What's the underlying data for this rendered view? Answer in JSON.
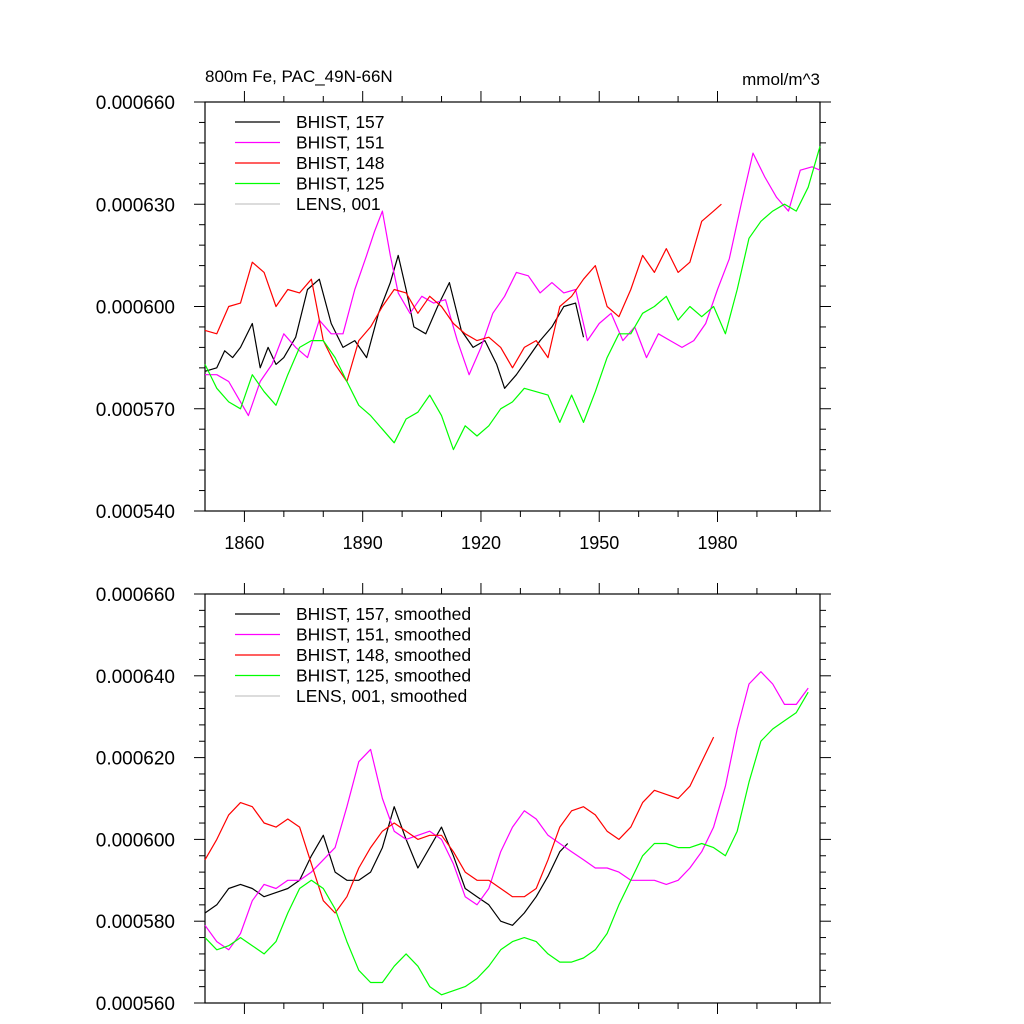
{
  "figure": {
    "title_left": "800m Fe, PAC_49N-66N",
    "title_right": "mmol/m^3"
  },
  "chart_data": [
    {
      "type": "line",
      "title": "800m Fe, PAC_49N-66N",
      "units": "mmol/m^3",
      "xlim": [
        1850,
        2006
      ],
      "ylim": [
        0.00054,
        0.00066
      ],
      "xticks": [
        1860,
        1890,
        1920,
        1950,
        1980
      ],
      "yticks": [
        0.00054,
        0.00057,
        0.0006,
        0.00063,
        0.00066
      ],
      "ytick_labels": [
        "0.000540",
        "0.000570",
        "0.000600",
        "0.000630",
        "0.000660"
      ],
      "xtick_labels": [
        "1860",
        "1890",
        "1920",
        "1950",
        "1980"
      ],
      "legend_placement": "top-left",
      "series": [
        {
          "name": "BHIST, 157",
          "color": "#000000",
          "x": [
            1850,
            1853,
            1855,
            1857,
            1859,
            1862,
            1864,
            1866,
            1868,
            1870,
            1873,
            1876,
            1879,
            1882,
            1885,
            1888,
            1891,
            1894,
            1897,
            1899,
            1901,
            1903,
            1906,
            1909,
            1912,
            1915,
            1918,
            1921,
            1924,
            1926,
            1929,
            1932,
            1935,
            1938,
            1941,
            1944,
            1946
          ],
          "values": [
            0.000581,
            0.000582,
            0.000587,
            0.000585,
            0.000588,
            0.000595,
            0.000582,
            0.000588,
            0.000583,
            0.000585,
            0.000591,
            0.000605,
            0.000608,
            0.000595,
            0.000588,
            0.00059,
            0.000585,
            0.000598,
            0.000607,
            0.000615,
            0.000605,
            0.000594,
            0.000592,
            0.0006,
            0.000607,
            0.000593,
            0.000588,
            0.00059,
            0.000583,
            0.000576,
            0.00058,
            0.000585,
            0.00059,
            0.000594,
            0.0006,
            0.000601,
            0.000591
          ]
        },
        {
          "name": "BHIST, 151",
          "color": "#ff00ff",
          "x": [
            1850,
            1853,
            1856,
            1859,
            1861,
            1864,
            1867,
            1870,
            1873,
            1876,
            1879,
            1882,
            1885,
            1888,
            1891,
            1893,
            1895,
            1897,
            1899,
            1902,
            1905,
            1908,
            1911,
            1914,
            1917,
            1920,
            1923,
            1926,
            1929,
            1932,
            1935,
            1938,
            1941,
            1944,
            1947,
            1950,
            1953,
            1956,
            1959,
            1962,
            1965,
            1968,
            1971,
            1974,
            1977,
            1980,
            1983,
            1986,
            1989,
            1992,
            1995,
            1998,
            2001,
            2004,
            2006
          ],
          "values": [
            0.00058,
            0.00058,
            0.000578,
            0.000572,
            0.000568,
            0.000578,
            0.000583,
            0.000592,
            0.000588,
            0.000585,
            0.000596,
            0.000592,
            0.000592,
            0.000605,
            0.000615,
            0.000622,
            0.000628,
            0.000615,
            0.000604,
            0.000598,
            0.000603,
            0.000601,
            0.000602,
            0.00059,
            0.00058,
            0.000588,
            0.000598,
            0.000603,
            0.00061,
            0.000609,
            0.000604,
            0.000607,
            0.000604,
            0.000605,
            0.00059,
            0.000595,
            0.000598,
            0.00059,
            0.000594,
            0.000585,
            0.000592,
            0.00059,
            0.000588,
            0.00059,
            0.000595,
            0.000605,
            0.000614,
            0.00063,
            0.000645,
            0.000638,
            0.000632,
            0.000628,
            0.00064,
            0.000641,
            0.00064
          ]
        },
        {
          "name": "BHIST, 148",
          "color": "#ff0000",
          "x": [
            1850,
            1853,
            1856,
            1859,
            1862,
            1865,
            1868,
            1871,
            1874,
            1877,
            1880,
            1883,
            1886,
            1889,
            1892,
            1895,
            1898,
            1901,
            1904,
            1907,
            1910,
            1913,
            1916,
            1919,
            1922,
            1925,
            1928,
            1931,
            1934,
            1937,
            1940,
            1943,
            1946,
            1949,
            1952,
            1955,
            1958,
            1961,
            1964,
            1967,
            1970,
            1973,
            1976,
            1979,
            1981
          ],
          "values": [
            0.000593,
            0.000592,
            0.0006,
            0.000601,
            0.000613,
            0.00061,
            0.0006,
            0.000605,
            0.000604,
            0.000608,
            0.00059,
            0.000583,
            0.000578,
            0.00059,
            0.000594,
            0.0006,
            0.000605,
            0.000604,
            0.000598,
            0.000603,
            0.0006,
            0.000595,
            0.000592,
            0.00059,
            0.000591,
            0.000588,
            0.000582,
            0.000588,
            0.00059,
            0.000585,
            0.0006,
            0.000603,
            0.000608,
            0.000612,
            0.0006,
            0.000597,
            0.000605,
            0.000615,
            0.00061,
            0.000617,
            0.00061,
            0.000613,
            0.000625,
            0.000628,
            0.00063
          ]
        },
        {
          "name": "BHIST, 125",
          "color": "#00ff00",
          "x": [
            1850,
            1853,
            1856,
            1859,
            1862,
            1865,
            1868,
            1871,
            1874,
            1877,
            1880,
            1883,
            1886,
            1889,
            1892,
            1895,
            1898,
            1901,
            1904,
            1907,
            1910,
            1913,
            1916,
            1919,
            1922,
            1925,
            1928,
            1931,
            1934,
            1937,
            1940,
            1943,
            1946,
            1949,
            1952,
            1955,
            1958,
            1961,
            1964,
            1967,
            1970,
            1973,
            1976,
            1979,
            1982,
            1985,
            1988,
            1991,
            1994,
            1997,
            2000,
            2003,
            2006
          ],
          "values": [
            0.000583,
            0.000576,
            0.000572,
            0.00057,
            0.00058,
            0.000575,
            0.000571,
            0.00058,
            0.000588,
            0.00059,
            0.00059,
            0.000585,
            0.000578,
            0.000571,
            0.000568,
            0.000564,
            0.00056,
            0.000567,
            0.000569,
            0.000574,
            0.000568,
            0.000558,
            0.000565,
            0.000562,
            0.000565,
            0.00057,
            0.000572,
            0.000576,
            0.000575,
            0.000574,
            0.000566,
            0.000574,
            0.000566,
            0.000575,
            0.000585,
            0.000592,
            0.000592,
            0.000598,
            0.0006,
            0.000603,
            0.000596,
            0.0006,
            0.000597,
            0.0006,
            0.000592,
            0.000605,
            0.00062,
            0.000625,
            0.000628,
            0.00063,
            0.000628,
            0.000635,
            0.000647
          ]
        },
        {
          "name": "LENS, 001",
          "color": "#c8c8c8",
          "x": [],
          "values": []
        }
      ]
    },
    {
      "type": "line",
      "title": "",
      "xlim": [
        1850,
        2006
      ],
      "ylim": [
        0.00056,
        0.00066
      ],
      "xticks": [
        1860,
        1890,
        1920,
        1950,
        1980
      ],
      "yticks": [
        0.00056,
        0.00058,
        0.0006,
        0.00062,
        0.00064,
        0.00066
      ],
      "ytick_labels": [
        "0.000560",
        "0.000580",
        "0.000600",
        "0.000620",
        "0.000640",
        "0.000660"
      ],
      "xtick_labels": [],
      "legend_placement": "top-left",
      "series": [
        {
          "name": "BHIST, 157, smoothed",
          "color": "#000000",
          "x": [
            1850,
            1853,
            1856,
            1859,
            1862,
            1865,
            1868,
            1871,
            1874,
            1877,
            1880,
            1883,
            1886,
            1889,
            1892,
            1895,
            1898,
            1901,
            1904,
            1907,
            1910,
            1913,
            1916,
            1919,
            1922,
            1925,
            1928,
            1931,
            1934,
            1937,
            1940,
            1942
          ],
          "values": [
            0.000582,
            0.000584,
            0.000588,
            0.000589,
            0.000588,
            0.000586,
            0.000587,
            0.000588,
            0.00059,
            0.000596,
            0.000601,
            0.000592,
            0.00059,
            0.00059,
            0.000592,
            0.000598,
            0.000608,
            0.0006,
            0.000593,
            0.000598,
            0.000603,
            0.000596,
            0.000588,
            0.000586,
            0.000584,
            0.00058,
            0.000579,
            0.000582,
            0.000586,
            0.000591,
            0.000597,
            0.000599
          ]
        },
        {
          "name": "BHIST, 151, smoothed",
          "color": "#ff00ff",
          "x": [
            1850,
            1853,
            1856,
            1859,
            1862,
            1865,
            1868,
            1871,
            1874,
            1877,
            1880,
            1883,
            1886,
            1889,
            1892,
            1895,
            1898,
            1901,
            1904,
            1907,
            1910,
            1913,
            1916,
            1919,
            1922,
            1925,
            1928,
            1931,
            1934,
            1937,
            1940,
            1943,
            1946,
            1949,
            1952,
            1955,
            1958,
            1961,
            1964,
            1967,
            1970,
            1973,
            1976,
            1979,
            1982,
            1985,
            1988,
            1991,
            1994,
            1997,
            2000,
            2003
          ],
          "values": [
            0.000579,
            0.000575,
            0.000573,
            0.000577,
            0.000585,
            0.000589,
            0.000588,
            0.00059,
            0.00059,
            0.000592,
            0.000595,
            0.000598,
            0.000608,
            0.000619,
            0.000622,
            0.00061,
            0.000602,
            0.0006,
            0.000601,
            0.000602,
            0.0006,
            0.000594,
            0.000586,
            0.000584,
            0.000588,
            0.000597,
            0.000603,
            0.000607,
            0.000605,
            0.000601,
            0.000599,
            0.000597,
            0.000595,
            0.000593,
            0.000593,
            0.000592,
            0.00059,
            0.00059,
            0.00059,
            0.000589,
            0.00059,
            0.000593,
            0.000597,
            0.000603,
            0.000613,
            0.000627,
            0.000638,
            0.000641,
            0.000638,
            0.000633,
            0.000633,
            0.000637
          ]
        },
        {
          "name": "BHIST, 148, smoothed",
          "color": "#ff0000",
          "x": [
            1850,
            1853,
            1856,
            1859,
            1862,
            1865,
            1868,
            1871,
            1874,
            1877,
            1880,
            1883,
            1886,
            1889,
            1892,
            1895,
            1898,
            1901,
            1904,
            1907,
            1910,
            1913,
            1916,
            1919,
            1922,
            1925,
            1928,
            1931,
            1934,
            1937,
            1940,
            1943,
            1946,
            1949,
            1952,
            1955,
            1958,
            1961,
            1964,
            1967,
            1970,
            1973,
            1976,
            1979
          ],
          "values": [
            0.000595,
            0.0006,
            0.000606,
            0.000609,
            0.000608,
            0.000604,
            0.000603,
            0.000605,
            0.000603,
            0.000594,
            0.000585,
            0.000582,
            0.000586,
            0.000593,
            0.000598,
            0.000602,
            0.000604,
            0.000602,
            0.0006,
            0.000601,
            0.000601,
            0.000597,
            0.000592,
            0.00059,
            0.00059,
            0.000588,
            0.000586,
            0.000586,
            0.000588,
            0.000595,
            0.000603,
            0.000607,
            0.000608,
            0.000606,
            0.000602,
            0.0006,
            0.000603,
            0.000609,
            0.000612,
            0.000611,
            0.00061,
            0.000613,
            0.000619,
            0.000625
          ]
        },
        {
          "name": "BHIST, 125, smoothed",
          "color": "#00ff00",
          "x": [
            1850,
            1853,
            1856,
            1859,
            1862,
            1865,
            1868,
            1871,
            1874,
            1877,
            1880,
            1883,
            1886,
            1889,
            1892,
            1895,
            1898,
            1901,
            1904,
            1907,
            1910,
            1913,
            1916,
            1919,
            1922,
            1925,
            1928,
            1931,
            1934,
            1937,
            1940,
            1943,
            1946,
            1949,
            1952,
            1955,
            1958,
            1961,
            1964,
            1967,
            1970,
            1973,
            1976,
            1979,
            1982,
            1985,
            1988,
            1991,
            1994,
            1997,
            2000,
            2003
          ],
          "values": [
            0.000576,
            0.000573,
            0.000574,
            0.000576,
            0.000574,
            0.000572,
            0.000575,
            0.000582,
            0.000588,
            0.00059,
            0.000588,
            0.000583,
            0.000575,
            0.000568,
            0.000565,
            0.000565,
            0.000569,
            0.000572,
            0.000569,
            0.000564,
            0.000562,
            0.000563,
            0.000564,
            0.000566,
            0.000569,
            0.000573,
            0.000575,
            0.000576,
            0.000575,
            0.000572,
            0.00057,
            0.00057,
            0.000571,
            0.000573,
            0.000577,
            0.000584,
            0.00059,
            0.000596,
            0.000599,
            0.000599,
            0.000598,
            0.000598,
            0.000599,
            0.000598,
            0.000596,
            0.000602,
            0.000614,
            0.000624,
            0.000627,
            0.000629,
            0.000631,
            0.000636
          ]
        },
        {
          "name": "LENS, 001, smoothed",
          "color": "#c8c8c8",
          "x": [],
          "values": []
        }
      ]
    }
  ]
}
